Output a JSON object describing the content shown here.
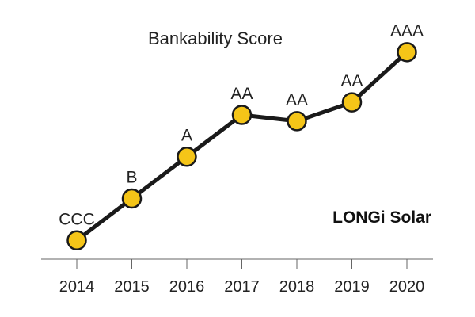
{
  "chart_data": {
    "type": "line",
    "title": "Bankability Score",
    "annotation": "LONGi Solar",
    "x": [
      "2014",
      "2015",
      "2016",
      "2017",
      "2018",
      "2019",
      "2020"
    ],
    "rating_scale": [
      "CCC",
      "B",
      "A",
      "AA",
      "AAA"
    ],
    "series": [
      {
        "labels": [
          "CCC",
          "B",
          "A",
          "AA",
          "AA",
          "AA",
          "AAA"
        ],
        "values": [
          0,
          1,
          2,
          3,
          2.85,
          3.3,
          4.5
        ]
      }
    ],
    "ylim": [
      -0.45,
      4.8
    ],
    "grid": false,
    "colors": {
      "line": "#1a1a1a",
      "marker_fill": "#f5c518",
      "marker_edge": "#1a1a1a",
      "axis": "#666666"
    }
  }
}
